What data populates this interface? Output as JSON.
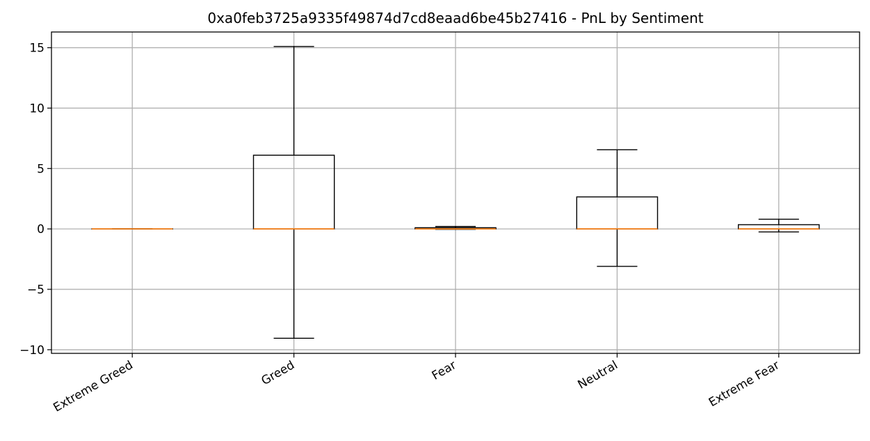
{
  "chart_data": {
    "type": "boxplot",
    "title": "0xa0feb3725a9335f49874d7cd8eaad6be45b27416 - PnL by Sentiment",
    "xlabel": "",
    "ylabel": "",
    "ylim": [
      -10.3,
      16.3
    ],
    "yticks": [
      -10,
      -5,
      0,
      5,
      10,
      15
    ],
    "grid": true,
    "categories": [
      "Extreme Greed",
      "Greed",
      "Fear",
      "Neutral",
      "Extreme Fear"
    ],
    "boxes": [
      {
        "category": "Extreme Greed",
        "whisker_low": 0,
        "q1": 0,
        "median": 0,
        "q3": 0,
        "whisker_high": 0
      },
      {
        "category": "Greed",
        "whisker_low": -9.05,
        "q1": 0,
        "median": 0,
        "q3": 6.1,
        "whisker_high": 15.1
      },
      {
        "category": "Fear",
        "whisker_low": -0.03,
        "q1": 0,
        "median": 0,
        "q3": 0.1,
        "whisker_high": 0.2
      },
      {
        "category": "Neutral",
        "whisker_low": -3.1,
        "q1": 0,
        "median": 0,
        "q3": 2.65,
        "whisker_high": 6.55
      },
      {
        "category": "Extreme Fear",
        "whisker_low": -0.25,
        "q1": 0,
        "median": 0,
        "q3": 0.35,
        "whisker_high": 0.8
      }
    ],
    "colors": {
      "box": "#000000",
      "median": "#ff7f0e",
      "grid": "#b0b0b0"
    }
  }
}
